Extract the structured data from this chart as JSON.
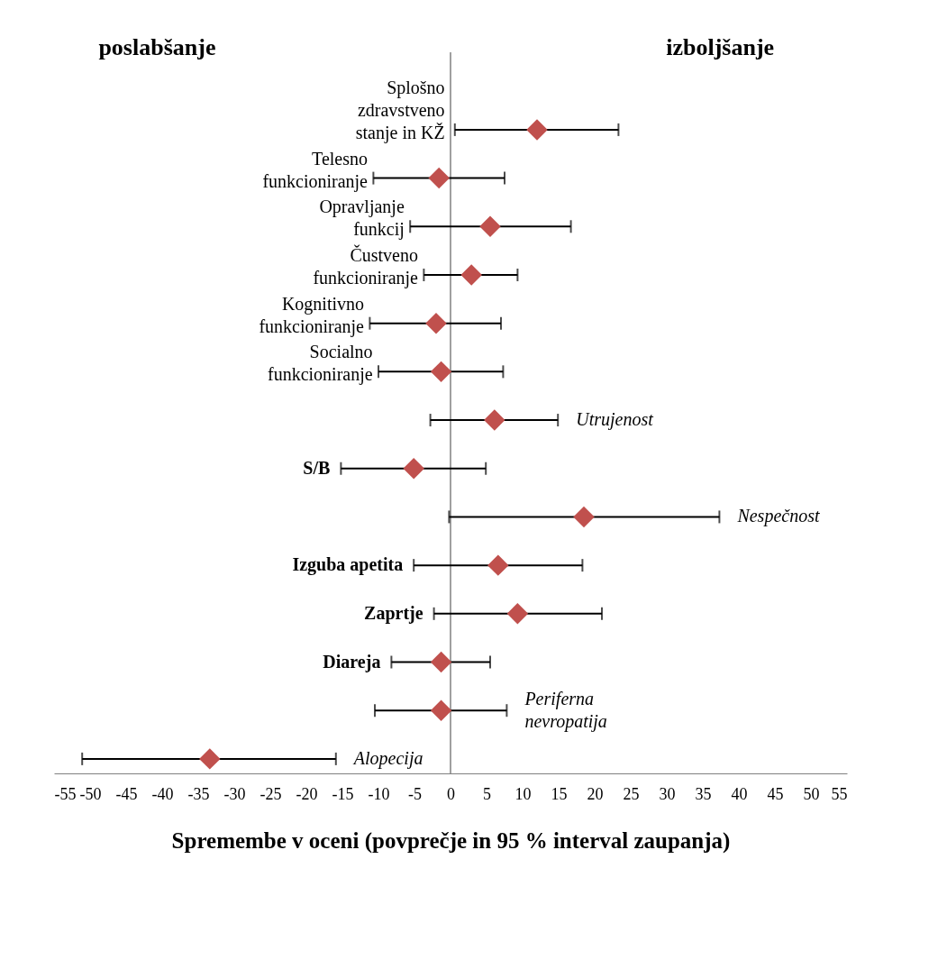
{
  "chart_data": {
    "type": "scatter",
    "orientation": "horizontal",
    "categories": [
      "Splošno zdravstveno stanje in KŽ",
      "Telesno funkcioniranje",
      "Opravljanje funkcij",
      "Čustveno funkcioniranje",
      "Kognitivno funkcioniranje",
      "Socialno funkcioniranje",
      "Utrujenost",
      "S/B",
      "Nespečnost",
      "Izguba apetita",
      "Zaprtje",
      "Diareja",
      "Periferna nevropatija",
      "Alopecija"
    ],
    "values": [
      12.0,
      -1.6,
      5.5,
      2.9,
      -2.0,
      -1.3,
      6.1,
      -5.1,
      18.5,
      6.6,
      9.3,
      -1.3,
      -1.3,
      -33.4
    ],
    "errors": [
      [
        0.6,
        23.3
      ],
      [
        -10.7,
        7.5
      ],
      [
        -5.6,
        16.7
      ],
      [
        -3.7,
        9.3
      ],
      [
        -11.2,
        7.0
      ],
      [
        -10.0,
        7.3
      ],
      [
        -2.8,
        14.9
      ],
      [
        -15.2,
        4.9
      ],
      [
        -0.2,
        37.3
      ],
      [
        -5.1,
        18.3
      ],
      [
        -2.3,
        21.0
      ],
      [
        -8.2,
        5.5
      ],
      [
        -10.5,
        7.8
      ],
      [
        -51.1,
        -15.9
      ]
    ],
    "color": "#c0504d",
    "marker": "diamond",
    "xlim": [
      -55,
      55
    ],
    "xticks": [
      -55,
      -50,
      -45,
      -40,
      -35,
      -30,
      -25,
      -20,
      -15,
      -10,
      -5,
      0,
      5,
      10,
      15,
      20,
      25,
      30,
      35,
      40,
      45,
      50,
      55
    ],
    "xlabel": "Spremembe v oceni (povprečje in 95 % interval zaupanja)",
    "annotations": [
      "poslabšanje",
      "izboljšanje"
    ],
    "ref_lines": [
      {
        "axis": "x",
        "value": 0,
        "color": "#808080"
      }
    ],
    "grid": false
  }
}
